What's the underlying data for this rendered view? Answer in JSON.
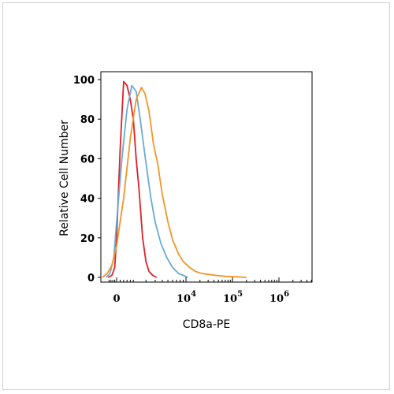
{
  "chart_data": {
    "type": "line",
    "title": "",
    "xlabel": "CD8a-PE",
    "ylabel": "Relative Cell Number",
    "x_scale": "biexponential",
    "ylim": [
      0,
      100
    ],
    "yticks": [
      0,
      20,
      40,
      60,
      80,
      100
    ],
    "xticks": [
      {
        "value": 0,
        "base": "0",
        "exp": ""
      },
      {
        "value": 10000,
        "base": "10",
        "exp": "4"
      },
      {
        "value": 100000,
        "base": "10",
        "exp": "5"
      },
      {
        "value": 1000000,
        "base": "10",
        "exp": "6"
      }
    ],
    "colors": {
      "red": "#e0202a",
      "blue": "#6aaad4",
      "orange": "#f0962a"
    },
    "series": [
      {
        "color": "#e0202a",
        "x": [
          -900,
          -500,
          -200,
          0,
          200,
          400,
          600,
          800,
          1000,
          1200,
          1400,
          1700,
          2000,
          2300,
          2700,
          3200
        ],
        "y": [
          0,
          1,
          5,
          20,
          65,
          99,
          97,
          90,
          80,
          60,
          45,
          20,
          8,
          3,
          1,
          0
        ]
      },
      {
        "color": "#6aaad4",
        "x": [
          -1100,
          -700,
          -300,
          0,
          300,
          600,
          900,
          1200,
          1500,
          2000,
          2500,
          3000,
          3800,
          4800,
          6000,
          7500,
          9000,
          11000
        ],
        "y": [
          0,
          2,
          10,
          28,
          60,
          85,
          97,
          94,
          80,
          58,
          40,
          28,
          17,
          10,
          5,
          2,
          1,
          0
        ]
      },
      {
        "color": "#f0962a",
        "x": [
          -1500,
          -1000,
          -500,
          0,
          400,
          800,
          1200,
          1600,
          1900,
          2300,
          2800,
          3300,
          4000,
          5000,
          6000,
          7500,
          9000,
          12000,
          16000,
          22000,
          30000,
          45000,
          70000,
          110000,
          200000
        ],
        "y": [
          0,
          2,
          6,
          16,
          40,
          70,
          90,
          96,
          93,
          84,
          67,
          58,
          42,
          28,
          19,
          12,
          8,
          5,
          3,
          2,
          1.5,
          1,
          0.5,
          0.3,
          0
        ]
      }
    ]
  }
}
